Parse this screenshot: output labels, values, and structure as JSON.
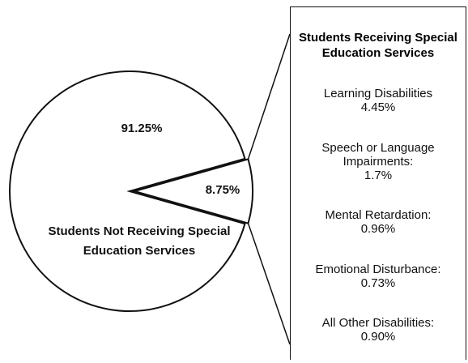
{
  "chart_data": {
    "type": "pie",
    "categories": [
      "Students Not Receiving Special Education Services",
      "Students Receiving Special Education Services"
    ],
    "values": [
      91.25,
      8.75
    ],
    "value_labels": [
      "91.25%",
      "8.75%"
    ],
    "breakdown": {
      "title": "Students Receiving Special Education Services",
      "categories": [
        "Learning Disabilities",
        "Speech or Language Impairments:",
        "Mental Retardation:",
        "Emotional Disturbance:",
        "All Other Disabilities:"
      ],
      "values": [
        4.45,
        1.7,
        0.96,
        0.73,
        0.9
      ],
      "value_labels": [
        "4.45%",
        "1.7%",
        "0.96%",
        "0.73%",
        "0.90%"
      ]
    }
  }
}
